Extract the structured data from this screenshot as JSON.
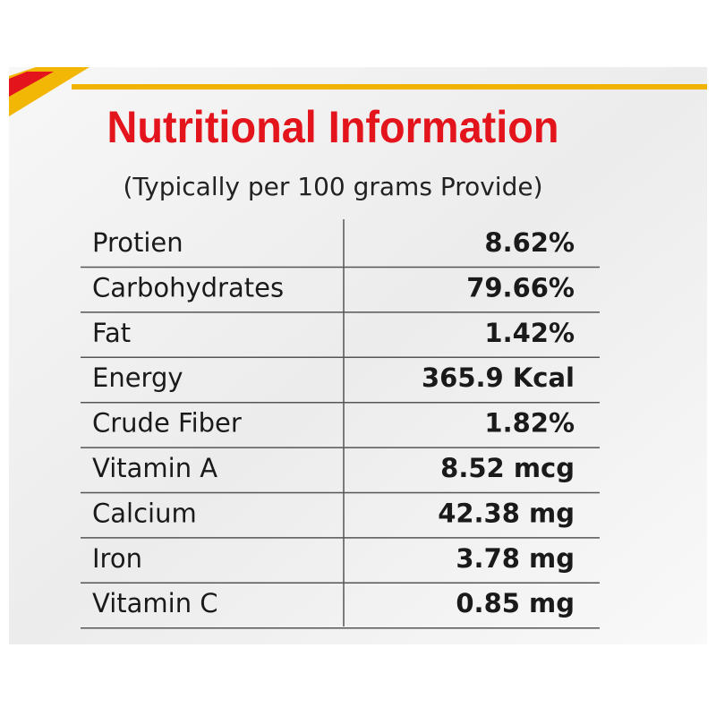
{
  "header": {
    "title": "Nutritional Information",
    "subtitle": "(Typically per 100 grams Provide)"
  },
  "table": {
    "rows": [
      [
        "Protien",
        "8.62%"
      ],
      [
        "Carbohydrates",
        "79.66%"
      ],
      [
        "Fat",
        "1.42%"
      ],
      [
        "Energy",
        "365.9 Kcal"
      ],
      [
        "Crude Fiber",
        "1.82%"
      ],
      [
        "Vitamin A",
        "8.52 mcg"
      ],
      [
        "Calcium",
        "42.38 mg"
      ],
      [
        "Iron",
        "3.78 mg"
      ],
      [
        "Vitamin C",
        "0.85 mg"
      ]
    ]
  }
}
